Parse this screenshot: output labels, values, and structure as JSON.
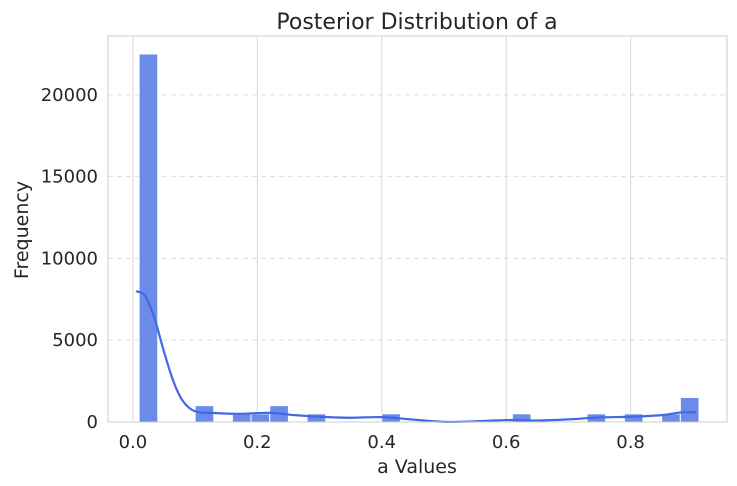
{
  "chart_data": {
    "type": "bar",
    "title": "Posterior Distribution of a",
    "xlabel": "a Values",
    "ylabel": "Frequency",
    "xlim": [
      -0.04,
      0.955
    ],
    "ylim": [
      0,
      23600
    ],
    "xticks": [
      0.0,
      0.2,
      0.4,
      0.6,
      0.8
    ],
    "xtick_labels": [
      "0.0",
      "0.2",
      "0.4",
      "0.6",
      "0.8"
    ],
    "yticks": [
      0,
      5000,
      10000,
      15000,
      20000
    ],
    "ytick_labels": [
      "0",
      "5000",
      "10000",
      "15000",
      "20000"
    ],
    "vertical_grid": true,
    "horizontal_grid": "dashed",
    "legend": "none",
    "bar_color": "#6b8be8",
    "kde_color": "#4169e1",
    "bins": [
      {
        "x0": 0.01,
        "x1": 0.04,
        "count": 22500
      },
      {
        "x0": 0.1,
        "x1": 0.13,
        "count": 1000
      },
      {
        "x0": 0.16,
        "x1": 0.19,
        "count": 500
      },
      {
        "x0": 0.19,
        "x1": 0.22,
        "count": 500
      },
      {
        "x0": 0.22,
        "x1": 0.25,
        "count": 1000
      },
      {
        "x0": 0.28,
        "x1": 0.31,
        "count": 500
      },
      {
        "x0": 0.4,
        "x1": 0.43,
        "count": 500
      },
      {
        "x0": 0.61,
        "x1": 0.64,
        "count": 500
      },
      {
        "x0": 0.73,
        "x1": 0.76,
        "count": 500
      },
      {
        "x0": 0.79,
        "x1": 0.82,
        "count": 500
      },
      {
        "x0": 0.85,
        "x1": 0.88,
        "count": 500
      },
      {
        "x0": 0.88,
        "x1": 0.91,
        "count": 1500
      }
    ],
    "kde": {
      "x": [
        0.005,
        0.02,
        0.035,
        0.05,
        0.065,
        0.08,
        0.1,
        0.13,
        0.17,
        0.22,
        0.26,
        0.3,
        0.35,
        0.4,
        0.45,
        0.5,
        0.55,
        0.6,
        0.65,
        0.7,
        0.75,
        0.8,
        0.85,
        0.88,
        0.905
      ],
      "y": [
        8000,
        7700,
        6300,
        4300,
        2500,
        1300,
        650,
        550,
        500,
        560,
        420,
        320,
        260,
        300,
        150,
        10,
        40,
        120,
        90,
        160,
        280,
        320,
        420,
        580,
        600
      ]
    }
  }
}
